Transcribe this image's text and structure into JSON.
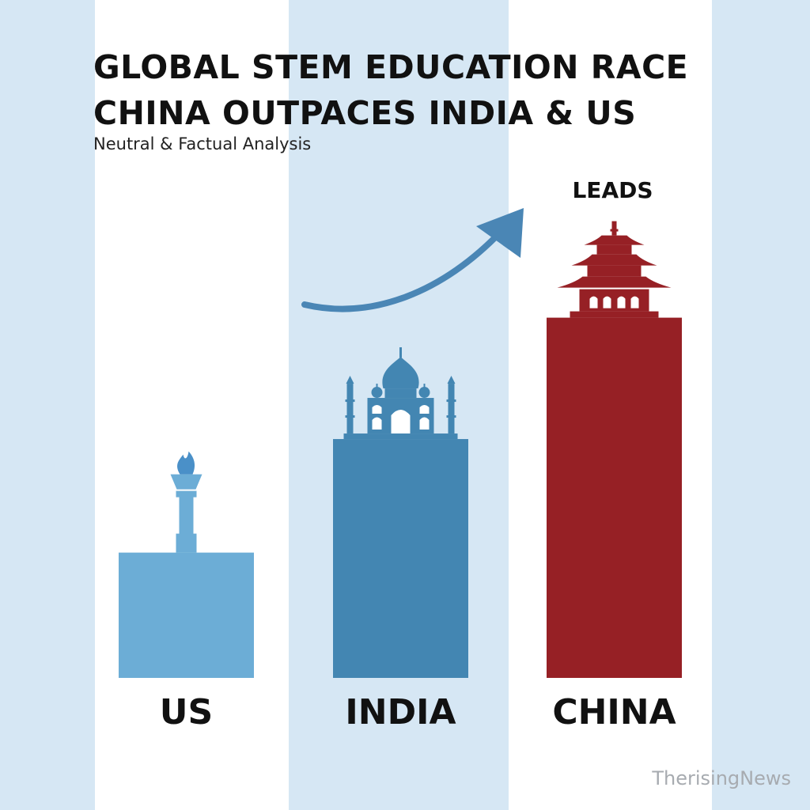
{
  "chart_data": {
    "type": "bar",
    "title_lines": [
      "GLOBAL STEM EDUCATION RACE",
      "CHINA OUTPACES INDIA & US"
    ],
    "subtitle": "Neutral & Factual Analysis",
    "categories": [
      "US",
      "INDIA",
      "CHINA"
    ],
    "values": [
      32,
      61,
      92
    ],
    "ylim": [
      0,
      100
    ],
    "colors": [
      "#6cadd6",
      "#4386b2",
      "#962025"
    ],
    "icons": [
      "torch-icon",
      "taj-mahal-icon",
      "pagoda-icon"
    ],
    "annotation": "LEADS",
    "arrow_color": "#4a86b5",
    "grid": false,
    "legend": "none"
  },
  "watermark": "TherisingNews"
}
